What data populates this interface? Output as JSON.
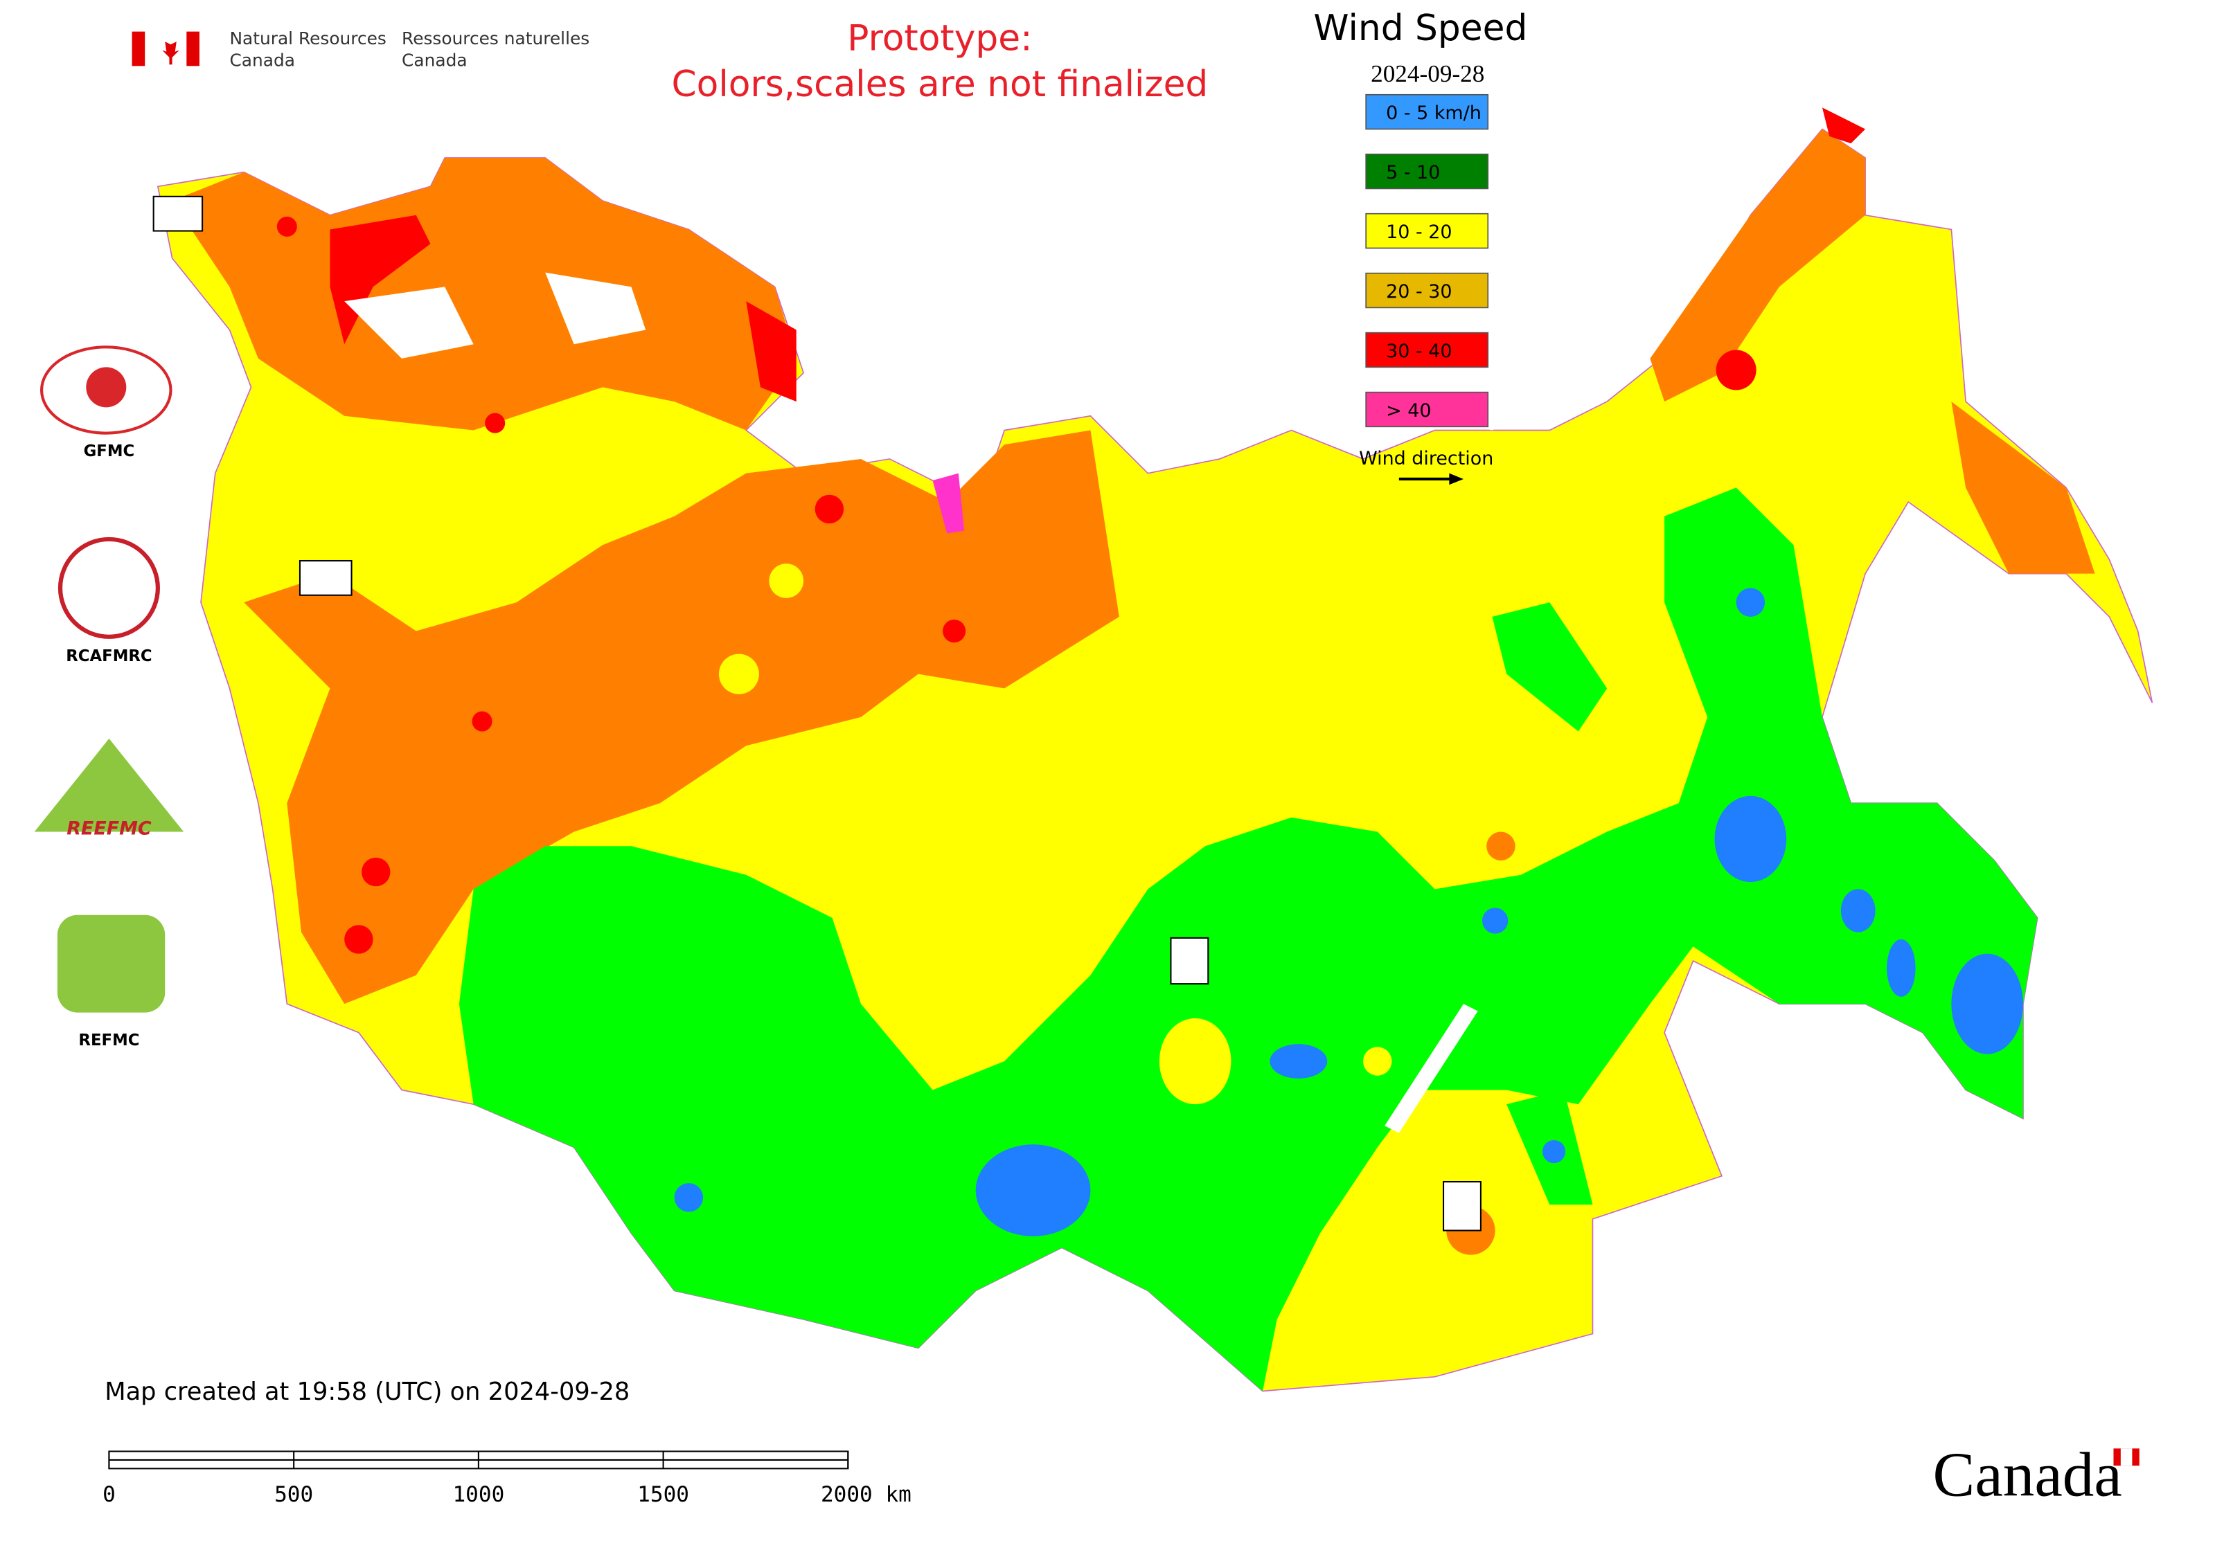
{
  "header": {
    "agency_en_line1": "Natural Resources",
    "agency_en_line2": "Canada",
    "agency_fr_line1": "Ressources naturelles",
    "agency_fr_line2": "Canada",
    "note_line1": "Prototype:",
    "note_line2": "Colors,scales are not finalized"
  },
  "legend": {
    "title": "Wind Speed",
    "date": "2024-09-28",
    "items": [
      {
        "label": "0 - 5 km/h",
        "color": "#3399ff"
      },
      {
        "label": "5 - 10",
        "color": "#008000"
      },
      {
        "label": "10 - 20",
        "color": "#ffff00"
      },
      {
        "label": "20 - 30",
        "color": "#e6b800"
      },
      {
        "label": "30 - 40",
        "color": "#ff0000"
      },
      {
        "label": "> 40",
        "color": "#ff3399"
      }
    ],
    "direction_label": "Wind direction"
  },
  "logos": [
    "GFMC",
    "RCAFMRC",
    "REEFMC",
    "REFMC"
  ],
  "footer": {
    "created": "Map created at 19:58 (UTC) on 2024-09-28",
    "scale_labels": [
      "0",
      "500",
      "1000",
      "1500",
      "2000 km"
    ],
    "wordmark": "Canada"
  }
}
